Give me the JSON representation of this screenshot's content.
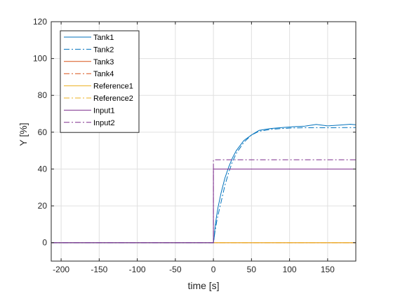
{
  "chart_data": {
    "type": "line",
    "xlabel": "time [s]",
    "ylabel": "Y [%]",
    "xlim": [
      -213,
      187
    ],
    "ylim": [
      -10,
      120
    ],
    "x_ticks": [
      -200,
      -150,
      -100,
      -50,
      0,
      50,
      100,
      150
    ],
    "y_ticks": [
      0,
      20,
      40,
      60,
      80,
      100,
      120
    ],
    "x_tick_labels": [
      "-200",
      "-150",
      "-100",
      "-50",
      "0",
      "50",
      "100",
      "150"
    ],
    "y_tick_labels": [
      "0",
      "20",
      "40",
      "60",
      "80",
      "100",
      "120"
    ],
    "grid": true,
    "legend_position": "top-left",
    "series": [
      {
        "name": "Tank1",
        "color": "#0072BD",
        "style": "solid",
        "x": [
          -213,
          0,
          1,
          2,
          4,
          6,
          8,
          10,
          15,
          20,
          25,
          30,
          40,
          50,
          60,
          75,
          90,
          105,
          120,
          135,
          150,
          165,
          180,
          187
        ],
        "y": [
          0,
          0,
          3,
          8,
          14,
          19,
          23,
          27,
          35,
          41,
          46,
          50,
          55.5,
          58.5,
          61,
          62,
          62.5,
          63,
          63.3,
          64.2,
          63.4,
          63.8,
          64.3,
          64
        ]
      },
      {
        "name": "Tank2",
        "color": "#0072BD",
        "style": "dashdot",
        "x": [
          -213,
          0,
          2,
          5,
          10,
          15,
          20,
          25,
          30,
          40,
          50,
          60,
          75,
          90,
          105,
          120,
          135,
          150,
          165,
          180,
          187
        ],
        "y": [
          0,
          0,
          6,
          13,
          22,
          31,
          38,
          44,
          48.5,
          54.5,
          58.5,
          60.5,
          61.5,
          62,
          62.3,
          62.4,
          62.5,
          62.4,
          62.5,
          62.5,
          62.5
        ]
      },
      {
        "name": "Tank3",
        "color": "#D95319",
        "style": "solid",
        "x": [
          -213,
          187
        ],
        "y": [
          0,
          0
        ]
      },
      {
        "name": "Tank4",
        "color": "#D95319",
        "style": "dashdot",
        "x": [
          -213,
          187
        ],
        "y": [
          0,
          0
        ]
      },
      {
        "name": "Reference1",
        "color": "#EDB120",
        "style": "solid",
        "x": [
          -213,
          187
        ],
        "y": [
          0,
          0
        ]
      },
      {
        "name": "Reference2",
        "color": "#EDB120",
        "style": "dashdot",
        "x": [
          -213,
          187
        ],
        "y": [
          0,
          0
        ]
      },
      {
        "name": "Input1",
        "color": "#7E2F8E",
        "style": "solid",
        "x": [
          -213,
          0,
          0,
          187
        ],
        "y": [
          0,
          0,
          40,
          40
        ]
      },
      {
        "name": "Input2",
        "color": "#7E2F8E",
        "style": "dashdot",
        "x": [
          -213,
          0,
          0,
          187
        ],
        "y": [
          0,
          0,
          45,
          45
        ]
      }
    ]
  }
}
